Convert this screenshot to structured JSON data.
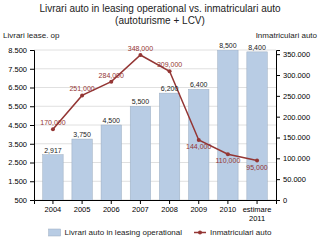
{
  "chart_data": {
    "type": "bar",
    "title": "Livrari auto in leasing operational vs. inmatriculari auto\n(autoturisme + LCV)",
    "y_label": "Livrari lease. op",
    "y2_label": "Inmatriculari auto",
    "categories": [
      "2004",
      "2005",
      "2006",
      "2007",
      "2008",
      "2009",
      "2010",
      "estimare 2011"
    ],
    "series": [
      {
        "name": "Livrari auto in leasing operational",
        "type": "bar",
        "color": "#b8cce4",
        "values": [
          2917,
          3750,
          4500,
          5500,
          6200,
          6400,
          8500,
          8400
        ],
        "value_labels": [
          "2,917",
          "3,750",
          "4,500",
          "5,500",
          "6,200",
          "6,400",
          "8,500",
          "8,400"
        ]
      },
      {
        "name": "Inmatriculari auto",
        "type": "line",
        "color": "#943634",
        "marker": "circle",
        "axis": "y2",
        "values": [
          170000,
          251000,
          284000,
          348000,
          309000,
          144000,
          110000,
          95000
        ],
        "value_labels": [
          "170,000",
          "251,000",
          "284,000",
          "348,000",
          "309,000",
          "144,000",
          "110,000",
          "95,000"
        ]
      }
    ],
    "ylim": [
      500,
      8500
    ],
    "yticks": [
      500,
      {
        "value": 1500,
        "label": "1.500"
      },
      {
        "value": 2500,
        "label": "2.500"
      },
      {
        "value": 3500,
        "label": "3.500"
      },
      {
        "value": 4500,
        "label": "4.500"
      },
      {
        "value": 5500,
        "label": "5.500"
      },
      {
        "value": 6500,
        "label": "6.500"
      },
      {
        "value": 7500,
        "label": "7.500"
      },
      {
        "value": 8500,
        "label": "8.500"
      }
    ],
    "y2lim": [
      0,
      360000
    ],
    "y2ticks": [
      0,
      {
        "value": 50000,
        "label": "50.000"
      },
      {
        "value": 100000,
        "label": "100.000"
      },
      {
        "value": 150000,
        "label": "150.000"
      },
      {
        "value": 200000,
        "label": "200.000"
      },
      {
        "value": 250000,
        "label": "250.000"
      },
      {
        "value": 300000,
        "label": "300.000"
      },
      {
        "value": 350000,
        "label": "350.000"
      }
    ],
    "grid": true,
    "legend": "bottom",
    "data_labels": true
  }
}
